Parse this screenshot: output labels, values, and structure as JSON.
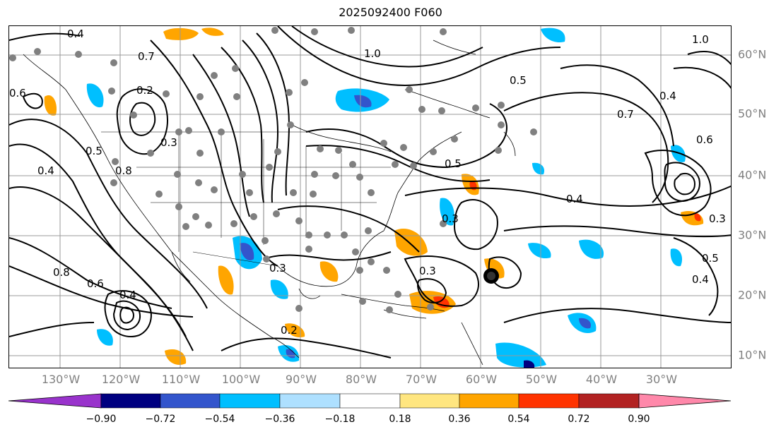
{
  "title": "2025092400 F060",
  "lon_labels": [
    "130°W",
    "120°W",
    "110°W",
    "100°W",
    "90°W",
    "80°W",
    "70°W",
    "60°W",
    "50°W",
    "40°W",
    "30°W"
  ],
  "lat_labels": [
    "60°N",
    "50°N",
    "40°N",
    "30°N",
    "20°N",
    "10°N"
  ],
  "colorbar": {
    "ticks": [
      "−0.90",
      "−0.72",
      "−0.54",
      "−0.36",
      "−0.18",
      "0.18",
      "0.36",
      "0.54",
      "0.72",
      "0.90"
    ],
    "colors": [
      "#9933cc",
      "#000080",
      "#3355cc",
      "#00bfff",
      "#aee0ff",
      "#ffffff",
      "#ffe680",
      "#ffa500",
      "#ff3300",
      "#b22222",
      "#ff88aa"
    ]
  },
  "contour_labels": [
    "0.4",
    "0.7",
    "0.2",
    "0.3",
    "0.5",
    "0.6",
    "0.8",
    "1.0",
    "0.5",
    "0.4",
    "0.3",
    "0.2",
    "0.4",
    "0.8",
    "0.6",
    "0.3",
    "0.4",
    "0.3",
    "0.5",
    "0.4",
    "0.3",
    "0.5",
    "0.7",
    "0.4",
    "0.6",
    "1.0"
  ]
}
